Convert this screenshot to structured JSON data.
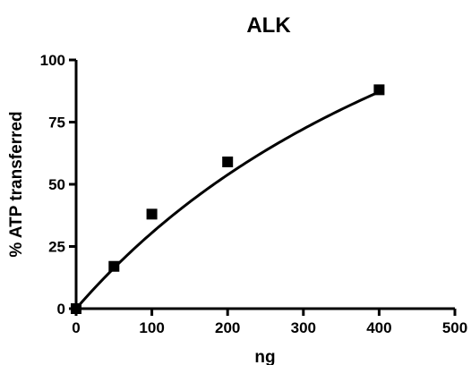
{
  "chart_data": {
    "type": "scatter",
    "title": "ALK",
    "xlabel": "ng",
    "ylabel": "% ATP transferred",
    "xlim": [
      0,
      500
    ],
    "ylim": [
      0,
      100
    ],
    "x_ticks": [
      0,
      100,
      200,
      300,
      400,
      500
    ],
    "y_ticks": [
      0,
      25,
      50,
      75,
      100
    ],
    "grid": false,
    "legend": "none",
    "series": [
      {
        "x": [
          0,
          50,
          100,
          200,
          400
        ],
        "y": [
          0,
          17,
          38,
          59,
          88
        ],
        "marker": "square",
        "fit": "curve"
      }
    ],
    "colors": {
      "marker": "#000000",
      "line": "#000000"
    }
  }
}
